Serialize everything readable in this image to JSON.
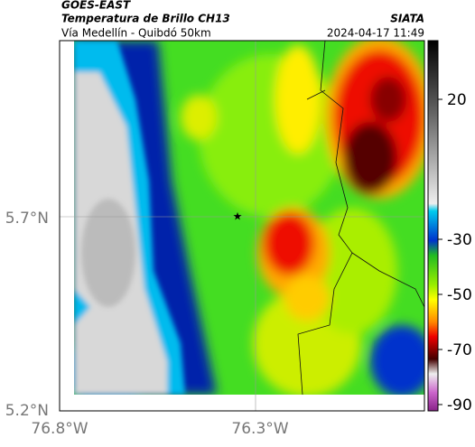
{
  "header": {
    "source": "GOES-EAST",
    "title": "Temperatura de Brillo CH13",
    "subtitle": "Vía Medellín - Quibdó 50km",
    "brand": "SIATA",
    "timestamp": "2024-04-17 11:49"
  },
  "axes": {
    "y_labels": [
      "5.7°N",
      "5.2°N"
    ],
    "x_labels": [
      "76.8°W",
      "76.3°W"
    ]
  },
  "colorbar": {
    "labels": [
      "20",
      "-30",
      "-50",
      "-70",
      "-90"
    ]
  }
}
